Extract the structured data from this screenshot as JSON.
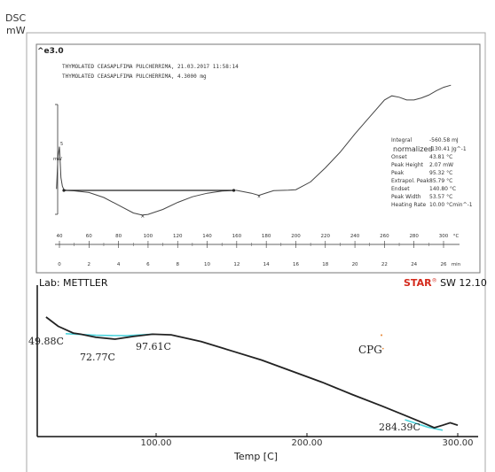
{
  "header": {
    "dsc_label": "DSC",
    "unit_label": "mW",
    "upper_scale": "^e3.0"
  },
  "upper_panel": {
    "sample_lines": [
      "THYMOLATED CEASAPLFIMA PULCHERRIMA, 21.03.2017 11:58:14",
      "THYMOLATED CEASAPLFIMA PULCHERRIMA, 4.3000 mg"
    ],
    "y_axis_unit": "mW",
    "y_scale_value": "5",
    "results": [
      {
        "label": "Integral",
        "value": "-560.58 mJ"
      },
      {
        "label": "normalized",
        "value": "-130.41 Jg^-1"
      },
      {
        "label": "Onset",
        "value": "43.81 °C"
      },
      {
        "label": "Peak Height",
        "value": "2.07 mW"
      },
      {
        "label": "Peak",
        "value": "95.32 °C"
      },
      {
        "label": "Extrapol. Peak",
        "value": "85.79 °C"
      },
      {
        "label": "Endset",
        "value": "140.80 °C"
      },
      {
        "label": "Peak Width",
        "value": "53.57 °C"
      },
      {
        "label": "Heating Rate",
        "value": "10.00 °Cmin^-1"
      }
    ],
    "temp_ticks": [
      "40",
      "60",
      "80",
      "100",
      "120",
      "140",
      "160",
      "180",
      "200",
      "220",
      "240",
      "260",
      "280",
      "300",
      "°C"
    ],
    "time_ticks": [
      "0",
      "2",
      "4",
      "6",
      "8",
      "10",
      "12",
      "14",
      "16",
      "18",
      "20",
      "22",
      "24",
      "26",
      "min"
    ]
  },
  "footer": {
    "lab_label": "Lab: METTLER",
    "software_brand": "STAR",
    "software_version": "SW 12.10"
  },
  "chart_data": [
    {
      "type": "line",
      "title": "",
      "xlabel": "°C",
      "ylabel": "mW",
      "xlim": [
        35,
        305
      ],
      "x_ticks": [
        40,
        60,
        80,
        100,
        120,
        140,
        160,
        180,
        200,
        220,
        240,
        260,
        280,
        300
      ],
      "grid": false,
      "series": [
        {
          "x": [
            38,
            39,
            40,
            41,
            42,
            43,
            45,
            50,
            60,
            70,
            80,
            90,
            96,
            100,
            110,
            120,
            130,
            140,
            150,
            158,
            160,
            165,
            170,
            175,
            180,
            185,
            190,
            195,
            200,
            210,
            220,
            230,
            240,
            250,
            260,
            265,
            270,
            275,
            280,
            285,
            290,
            295,
            300,
            305
          ],
          "y": [
            0.4,
            2.6,
            3.4,
            1.2,
            0.6,
            0.35,
            0.3,
            0.27,
            0.15,
            -0.2,
            -0.75,
            -1.3,
            -1.45,
            -1.4,
            -1.05,
            -0.55,
            -0.15,
            0.1,
            0.25,
            0.3,
            0.3,
            0.2,
            0.1,
            -0.05,
            0.12,
            0.28,
            0.3,
            0.32,
            0.35,
            0.9,
            1.9,
            3.0,
            4.3,
            5.5,
            6.7,
            7.0,
            6.9,
            6.7,
            6.7,
            6.85,
            7.05,
            7.35,
            7.6,
            7.75
          ]
        }
      ],
      "baseline": {
        "x": [
          43,
          158
        ],
        "y": [
          0.3,
          0.3
        ]
      }
    },
    {
      "type": "line",
      "title": "",
      "xlabel": "Temp [C]",
      "ylabel": "",
      "xlim": [
        20,
        310
      ],
      "x_ticks": [
        100,
        200,
        300
      ],
      "x_tick_labels": [
        "100.00",
        "200.00",
        "300.00"
      ],
      "grid": false,
      "series": [
        {
          "x": [
            27,
            35,
            45,
            50,
            60,
            72.77,
            85,
            97.61,
            110,
            130,
            150,
            170,
            190,
            210,
            230,
            250,
            265,
            275,
            284.39,
            290,
            295,
            300
          ],
          "y": [
            -0.2,
            -0.95,
            -1.5,
            -1.6,
            -1.85,
            -2.0,
            -1.78,
            -1.6,
            -1.65,
            -2.2,
            -2.95,
            -3.7,
            -4.6,
            -5.5,
            -6.5,
            -7.45,
            -8.2,
            -8.7,
            -9.2,
            -9.0,
            -8.8,
            -9.0
          ]
        },
        {
          "x": [
            40,
            60,
            80,
            97.61
          ],
          "y": [
            -1.55,
            -1.68,
            -1.72,
            -1.6
          ]
        },
        {
          "x": [
            265,
            280,
            290
          ],
          "y": [
            -8.55,
            -9.15,
            -9.4
          ]
        }
      ],
      "annotations": [
        "49.88C",
        "72.77C",
        "97.61C",
        "284.39C",
        "CPG"
      ]
    }
  ]
}
